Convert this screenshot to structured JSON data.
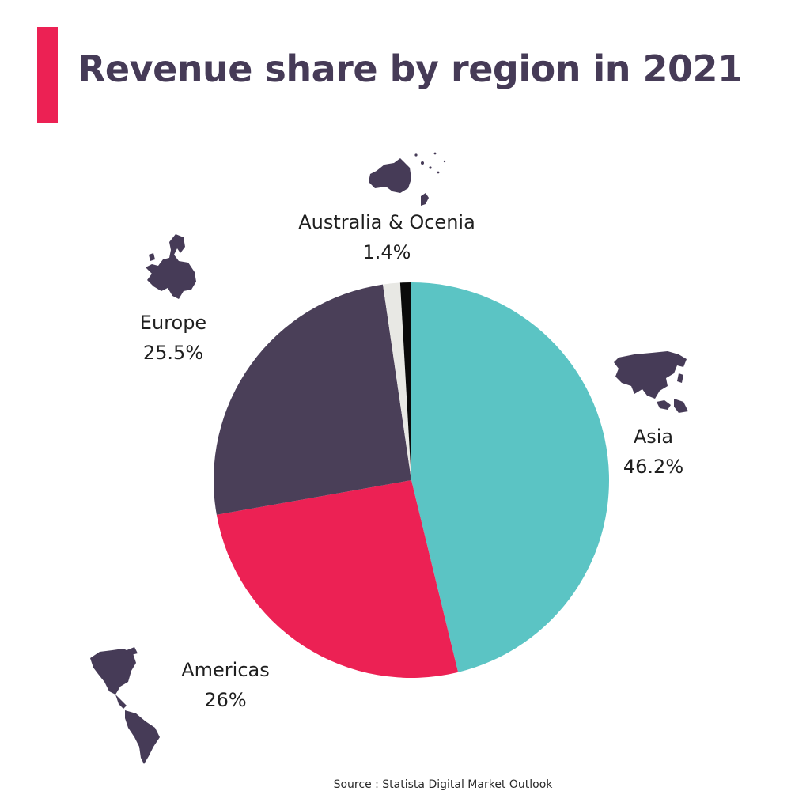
{
  "title": "Revenue share by region in 2021",
  "colors": {
    "accent": "#EC2154",
    "title": "#463B57"
  },
  "chart_data": {
    "type": "pie",
    "title": "Revenue share by region in 2021",
    "start_angle_deg": 0,
    "direction": "clockwise",
    "slices": [
      {
        "name": "Asia",
        "value": 46.2,
        "label": "46.2%",
        "color": "#5BC4C4",
        "icon": "asia-map-icon"
      },
      {
        "name": "Americas",
        "value": 26,
        "label": "26%",
        "color": "#EC2154",
        "icon": "americas-map-icon"
      },
      {
        "name": "Europe",
        "value": 25.5,
        "label": "25.5%",
        "color": "#4A3F58",
        "icon": "europe-map-icon"
      },
      {
        "name": "Australia & Ocenia",
        "value": 1.4,
        "label": "1.4%",
        "color": "#E8E8E4",
        "icon": "australia-oceania-map-icon"
      },
      {
        "name": "",
        "value": 0.9,
        "label": "",
        "color": "#0A0A0A"
      }
    ]
  },
  "source": {
    "prefix": "Source : ",
    "link_text": "Statista Digital Market Outlook"
  }
}
